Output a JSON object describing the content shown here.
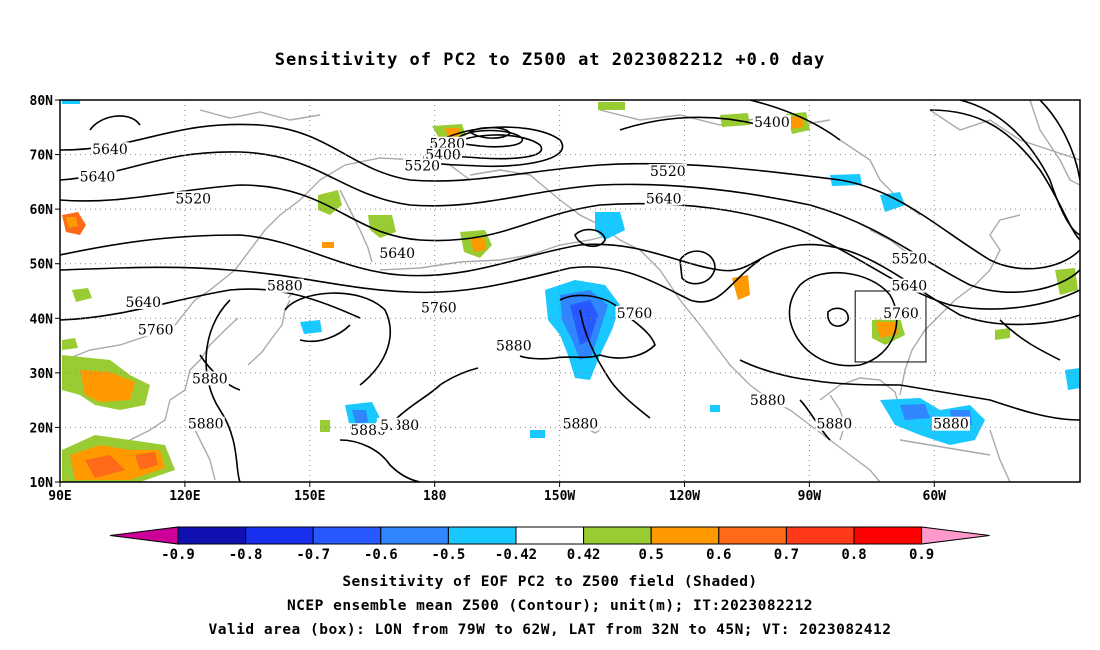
{
  "title": "Sensitivity of PC2 to Z500 at 2023082212 +0.0 day",
  "lat_labels": [
    "80N",
    "70N",
    "60N",
    "50N",
    "40N",
    "30N",
    "20N",
    "10N"
  ],
  "lon_labels": [
    "90E",
    "120E",
    "150E",
    "180",
    "150W",
    "120W",
    "90W",
    "60W"
  ],
  "colorbar": {
    "labels": [
      "-0.9",
      "-0.8",
      "-0.7",
      "-0.6",
      "-0.5",
      "-0.42",
      "0.42",
      "0.5",
      "0.6",
      "0.7",
      "0.8",
      "0.9"
    ],
    "colors": [
      "#1010b0",
      "#1830ee",
      "#2858ff",
      "#2f86ff",
      "#18c8ff",
      "#ffffff",
      "#99cc33",
      "#ff9900",
      "#ff6a1a",
      "#ff3a1a",
      "#ff0000"
    ],
    "end_left": "#cc0099",
    "end_right": "#ff99cc"
  },
  "contour_labels": [
    {
      "text": "5640",
      "lon": 102,
      "lat": 70.8
    },
    {
      "text": "5640",
      "lon": 99,
      "lat": 65.8
    },
    {
      "text": "5520",
      "lon": 122,
      "lat": 61.8
    },
    {
      "text": "5640",
      "lon": 110,
      "lat": 42.8
    },
    {
      "text": "5760",
      "lon": 113,
      "lat": 37.8
    },
    {
      "text": "5880",
      "lon": 126,
      "lat": 28.8
    },
    {
      "text": "5880",
      "lon": 125,
      "lat": 20.5
    },
    {
      "text": "5880",
      "lon": 144,
      "lat": 45.8
    },
    {
      "text": "5640",
      "lon": 171,
      "lat": 51.8
    },
    {
      "text": "5760",
      "lon": 181,
      "lat": 41.8
    },
    {
      "text": "5280",
      "lon": 183,
      "lat": 71.8
    },
    {
      "text": "5400",
      "lon": 182,
      "lat": 69.8
    },
    {
      "text": "5520",
      "lon": 177,
      "lat": 67.8
    },
    {
      "text": "5880",
      "lon": 164,
      "lat": 19.3
    },
    {
      "text": "5880",
      "lon": 172,
      "lat": 20.3
    },
    {
      "text": "5.",
      "lon": 168.5,
      "lat": 20.3
    },
    {
      "text": "5880",
      "lon": 199,
      "lat": 34.8
    },
    {
      "text": "5880",
      "lon": 215,
      "lat": 20.5
    },
    {
      "text": "5760",
      "lon": 228,
      "lat": 40.8
    },
    {
      "text": "5520",
      "lon": 236,
      "lat": 66.8
    },
    {
      "text": "5640",
      "lon": 235,
      "lat": 61.8
    },
    {
      "text": "5400",
      "lon": 261,
      "lat": 75.8
    },
    {
      "text": "5880",
      "lon": 260,
      "lat": 24.8
    },
    {
      "text": "5880",
      "lon": 276,
      "lat": 20.5
    },
    {
      "text": "5520",
      "lon": 294,
      "lat": 50.8
    },
    {
      "text": "5640",
      "lon": 294,
      "lat": 45.8
    },
    {
      "text": "5760",
      "lon": 292,
      "lat": 40.8
    },
    {
      "text": "5880",
      "lon": 304,
      "lat": 20.5
    }
  ],
  "valid_box": {
    "lon_min": 281,
    "lon_max": 298,
    "lat_min": 32,
    "lat_max": 45
  },
  "captions": [
    "Sensitivity of EOF PC2 to Z500 field (Shaded)",
    "NCEP ensemble mean Z500 (Contour); unit(m); IT:2023082212",
    "Valid area (box): LON from 79W to 62W, LAT from 32N to 45N; VT: 2023082412"
  ]
}
